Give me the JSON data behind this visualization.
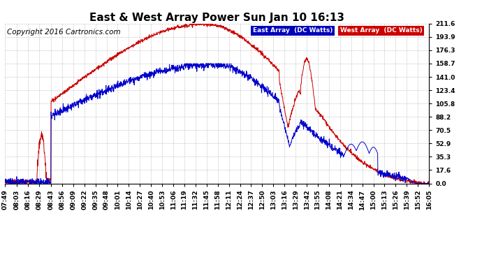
{
  "title": "East & West Array Power Sun Jan 10 16:13",
  "copyright": "Copyright 2016 Cartronics.com",
  "legend_east": "East Array  (DC Watts)",
  "legend_west": "West Array  (DC Watts)",
  "east_color": "#0000cc",
  "west_color": "#cc0000",
  "legend_east_bg": "#0000bb",
  "legend_west_bg": "#cc0000",
  "background_color": "#ffffff",
  "grid_color": "#bbbbbb",
  "yticks": [
    0.0,
    17.6,
    35.3,
    52.9,
    70.5,
    88.2,
    105.8,
    123.4,
    141.0,
    158.7,
    176.3,
    193.9,
    211.6
  ],
  "ymax": 211.6,
  "xtick_labels": [
    "07:49",
    "08:03",
    "08:16",
    "08:29",
    "08:43",
    "08:56",
    "09:09",
    "09:22",
    "09:35",
    "09:48",
    "10:01",
    "10:14",
    "10:27",
    "10:40",
    "10:53",
    "11:06",
    "11:19",
    "11:32",
    "11:45",
    "11:58",
    "12:11",
    "12:24",
    "12:37",
    "12:50",
    "13:03",
    "13:16",
    "13:29",
    "13:42",
    "13:55",
    "14:08",
    "14:21",
    "14:34",
    "14:47",
    "15:00",
    "15:13",
    "15:26",
    "15:39",
    "15:52",
    "16:05"
  ],
  "title_fontsize": 11,
  "tick_fontsize": 6.5,
  "copyright_fontsize": 7.5
}
